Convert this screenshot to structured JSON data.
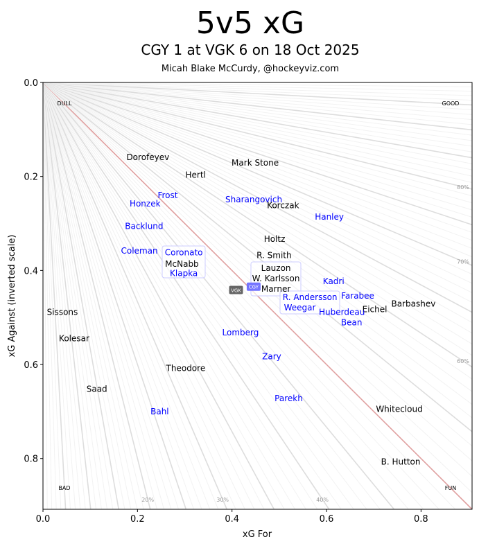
{
  "chart_data": {
    "type": "scatter",
    "title": "5v5 xG",
    "subtitle": "CGY 1 at VGK 6 on 18 Oct 2025",
    "credit": "Micah Blake McCurdy, @hockeyviz.com",
    "xlabel": "xG For",
    "ylabel": "xG Against (inverted scale)",
    "xlim": [
      0,
      0.908
    ],
    "ylim": [
      0.908,
      0
    ],
    "y_inverted": true,
    "x_ticks": [
      "0.0",
      "0.2",
      "0.4",
      "0.6",
      "0.8"
    ],
    "y_ticks": [
      "0.0",
      "0.2",
      "0.4",
      "0.6",
      "0.8"
    ],
    "corner_labels": {
      "top_left": "DULL",
      "top_right": "GOOD",
      "bottom_left": "BAD",
      "bottom_right": "FUN"
    },
    "percent_labels": [
      "20%",
      "30%",
      "40%",
      "60%",
      "70%",
      "80%"
    ],
    "colors": {
      "CGY": "#0000ff",
      "VGK": "#000000",
      "even_line": "#e0a0a0",
      "cgy_badge": "#6666ff",
      "vgk_badge": "#555555"
    },
    "teams": [
      {
        "name": "CGY",
        "x": 0.437,
        "y": 0.43
      },
      {
        "name": "VGK",
        "x": 0.432,
        "y": 0.437
      }
    ],
    "players": [
      {
        "name": "Dorofeyev",
        "team": "VGK",
        "x": 0.222,
        "y": 0.159
      },
      {
        "name": "Mark Stone",
        "team": "VGK",
        "x": 0.449,
        "y": 0.171
      },
      {
        "name": "Hertl",
        "team": "VGK",
        "x": 0.323,
        "y": 0.197
      },
      {
        "name": "Frost",
        "team": "CGY",
        "x": 0.264,
        "y": 0.24
      },
      {
        "name": "Sharangovich",
        "team": "CGY",
        "x": 0.446,
        "y": 0.249
      },
      {
        "name": "Korczak",
        "team": "VGK",
        "x": 0.508,
        "y": 0.262
      },
      {
        "name": "Honzek",
        "team": "CGY",
        "x": 0.216,
        "y": 0.258
      },
      {
        "name": "Hanley",
        "team": "CGY",
        "x": 0.606,
        "y": 0.286
      },
      {
        "name": "Backlund",
        "team": "CGY",
        "x": 0.214,
        "y": 0.306
      },
      {
        "name": "Holtz",
        "team": "VGK",
        "x": 0.49,
        "y": 0.333
      },
      {
        "name": "Coleman",
        "team": "CGY",
        "x": 0.204,
        "y": 0.358
      },
      {
        "name": "R. Smith",
        "team": "VGK",
        "x": 0.489,
        "y": 0.368
      },
      {
        "name": "Coronato",
        "team": "CGY",
        "x": 0.298,
        "y": 0.371
      },
      {
        "name": "McNabb",
        "team": "VGK",
        "x": 0.294,
        "y": 0.386
      },
      {
        "name": "Klapka",
        "team": "CGY",
        "x": 0.298,
        "y": 0.393
      },
      {
        "name": "Lauzon",
        "team": "VGK",
        "x": 0.493,
        "y": 0.395
      },
      {
        "name": "W. Karlsson",
        "team": "VGK",
        "x": 0.493,
        "y": 0.417
      },
      {
        "name": "Marner",
        "team": "VGK",
        "x": 0.493,
        "y": 0.439
      },
      {
        "name": "Kadri",
        "team": "CGY",
        "x": 0.615,
        "y": 0.423
      },
      {
        "name": "Farabee",
        "team": "CGY",
        "x": 0.666,
        "y": 0.454
      },
      {
        "name": "R. Andersson",
        "team": "CGY",
        "x": 0.565,
        "y": 0.457
      },
      {
        "name": "Barbashev",
        "team": "VGK",
        "x": 0.784,
        "y": 0.471
      },
      {
        "name": "Weegar",
        "team": "CGY",
        "x": 0.564,
        "y": 0.479
      },
      {
        "name": "Eichel",
        "team": "VGK",
        "x": 0.702,
        "y": 0.483
      },
      {
        "name": "Huberdeau",
        "team": "CGY",
        "x": 0.609,
        "y": 0.489
      },
      {
        "name": "Bean",
        "team": "CGY",
        "x": 0.653,
        "y": 0.511
      },
      {
        "name": "Sissons",
        "team": "VGK",
        "x": 0.041,
        "y": 0.489
      },
      {
        "name": "Lomberg",
        "team": "CGY",
        "x": 0.418,
        "y": 0.532
      },
      {
        "name": "Kolesar",
        "team": "VGK",
        "x": 0.066,
        "y": 0.545
      },
      {
        "name": "Zary",
        "team": "CGY",
        "x": 0.484,
        "y": 0.583
      },
      {
        "name": "Theodore",
        "team": "VGK",
        "x": 0.302,
        "y": 0.608
      },
      {
        "name": "Saad",
        "team": "VGK",
        "x": 0.114,
        "y": 0.652
      },
      {
        "name": "Parekh",
        "team": "CGY",
        "x": 0.52,
        "y": 0.672
      },
      {
        "name": "Whitecloud",
        "team": "VGK",
        "x": 0.754,
        "y": 0.695
      },
      {
        "name": "Bahl",
        "team": "CGY",
        "x": 0.247,
        "y": 0.7
      },
      {
        "name": "B. Hutton",
        "team": "VGK",
        "x": 0.757,
        "y": 0.807
      }
    ]
  }
}
